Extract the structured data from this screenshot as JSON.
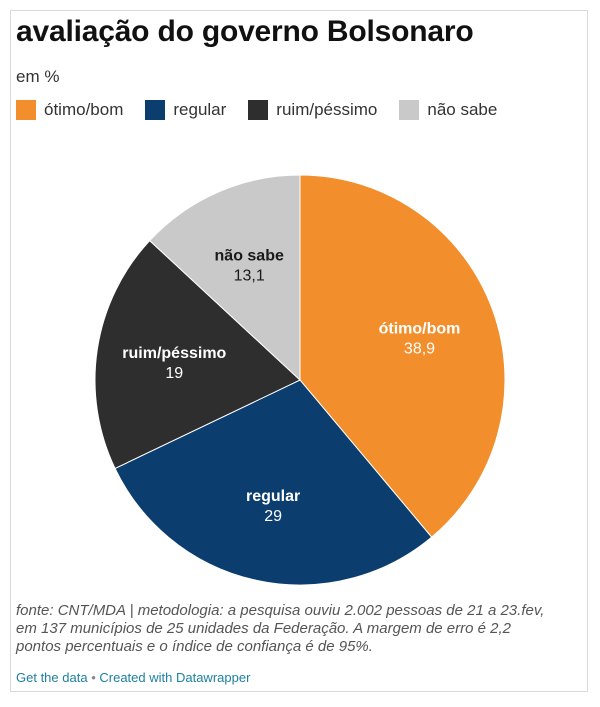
{
  "header": {
    "title": "avaliação do governo Bolsonaro",
    "subtitle": "em %"
  },
  "chart_data": {
    "type": "pie",
    "title": "avaliação do governo Bolsonaro",
    "subtitle": "em %",
    "categories": [
      "ótimo/bom",
      "regular",
      "ruim/péssimo",
      "não sabe"
    ],
    "values": [
      38.9,
      29,
      19,
      13.1
    ],
    "value_labels": [
      "38,9",
      "29",
      "19",
      "13,1"
    ],
    "colors": [
      "#f28e2b",
      "#0b3d6e",
      "#2e2e2e",
      "#c9c9c9"
    ],
    "label_colors": [
      "#ffffff",
      "#ffffff",
      "#ffffff",
      "#1a1a1a"
    ],
    "legend_position": "top-left",
    "start": "12 o'clock",
    "direction": "clockwise"
  },
  "footer": {
    "source": "fonte: CNT/MDA | metodologia: a pesquisa ouviu 2.002 pessoas de 21 a 23.fev, em 137 municípios de 25 unidades da Federação. A margem de erro é 2,2 pontos percentuais e o índice de confiança é de 95%.",
    "get_data": "Get the data",
    "separator": "•",
    "created_with": "Created with Datawrapper"
  }
}
